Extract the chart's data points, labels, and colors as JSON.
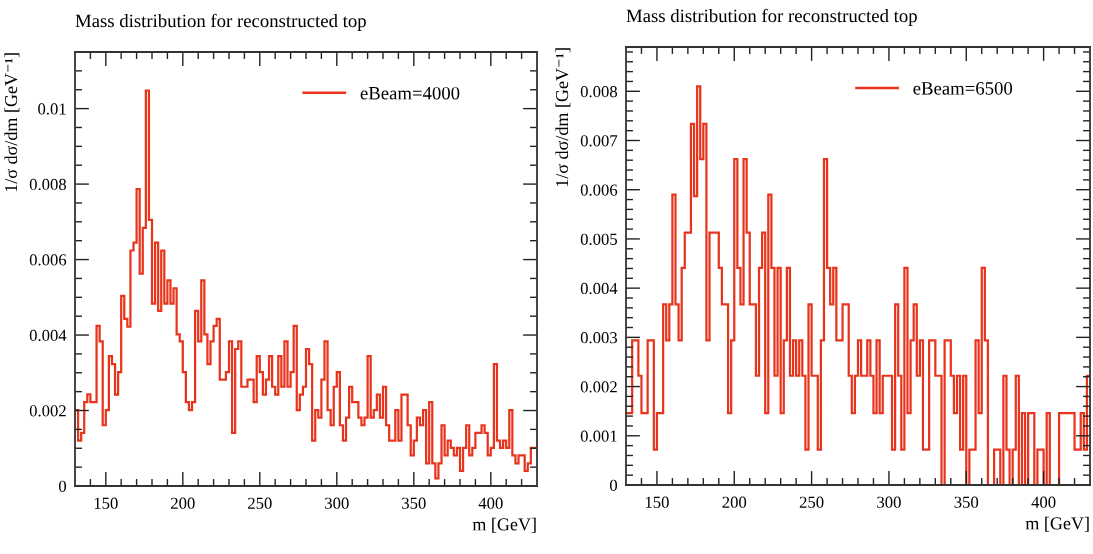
{
  "chart_data": [
    {
      "type": "histogram",
      "title": "Mass distribution for reconstructed top",
      "xlabel": "m [GeV]",
      "ylabel": "1/σ dσ/dm [GeV⁻¹]",
      "legend": "top right",
      "bins": [
        130,
        132,
        134,
        136,
        138,
        140,
        142,
        144,
        146,
        148,
        150,
        152,
        154,
        156,
        158,
        160,
        162,
        164,
        166,
        168,
        170,
        172,
        174,
        176,
        178,
        180,
        182,
        184,
        186,
        188,
        190,
        192,
        194,
        196,
        198,
        200,
        202,
        204,
        206,
        208,
        210,
        212,
        214,
        216,
        218,
        220,
        222,
        224,
        226,
        228,
        230,
        232,
        234,
        236,
        238,
        240,
        242,
        244,
        246,
        248,
        250,
        252,
        254,
        256,
        258,
        260,
        262,
        264,
        266,
        268,
        270,
        272,
        274,
        276,
        278,
        280,
        282,
        284,
        286,
        288,
        290,
        292,
        294,
        296,
        298,
        300,
        302,
        304,
        306,
        308,
        310,
        312,
        314,
        316,
        318,
        320,
        322,
        324,
        326,
        328,
        330,
        332,
        334,
        336,
        338,
        340,
        342,
        344,
        346,
        348,
        350,
        352,
        354,
        356,
        358,
        360,
        362,
        364,
        366,
        368,
        370,
        372,
        374,
        376,
        378,
        380,
        382,
        384,
        386,
        388,
        390,
        392,
        394,
        396,
        398,
        400,
        402,
        404,
        406,
        408,
        410,
        412,
        414,
        416,
        418,
        420,
        422,
        424,
        426,
        428,
        430
      ],
      "series": [
        {
          "name": "eBeam=4000",
          "color": "#e8341c",
          "values": [
            0.00201,
            0.0012,
            0.00141,
            0.00222,
            0.00243,
            0.00222,
            0.00222,
            0.00424,
            0.00383,
            0.00161,
            0.00201,
            0.00344,
            0.00323,
            0.00242,
            0.00302,
            0.00504,
            0.00443,
            0.00422,
            0.00624,
            0.00645,
            0.00787,
            0.00563,
            0.00684,
            0.01048,
            0.00705,
            0.00483,
            0.00645,
            0.00464,
            0.00624,
            0.00483,
            0.00545,
            0.00483,
            0.00524,
            0.00402,
            0.00383,
            0.00302,
            0.00222,
            0.00201,
            0.00222,
            0.00464,
            0.00383,
            0.00545,
            0.00402,
            0.00323,
            0.00383,
            0.00424,
            0.00443,
            0.00282,
            0.00282,
            0.00302,
            0.00383,
            0.00141,
            0.00363,
            0.00383,
            0.00263,
            0.00263,
            0.00282,
            0.00282,
            0.00222,
            0.00344,
            0.00302,
            0.00242,
            0.00282,
            0.00344,
            0.00263,
            0.00242,
            0.00344,
            0.00263,
            0.00383,
            0.00263,
            0.00302,
            0.00424,
            0.00201,
            0.00242,
            0.00263,
            0.00363,
            0.00323,
            0.0012,
            0.00201,
            0.00181,
            0.00282,
            0.00383,
            0.00201,
            0.00161,
            0.00263,
            0.00302,
            0.00161,
            0.0012,
            0.00181,
            0.00263,
            0.00222,
            0.00222,
            0.00181,
            0.00161,
            0.00181,
            0.00344,
            0.00181,
            0.00201,
            0.00242,
            0.00181,
            0.00263,
            0.00161,
            0.0012,
            0.0012,
            0.00201,
            0.0012,
            0.00242,
            0.00242,
            0.00161,
            0.00081,
            0.0012,
            0.00181,
            0.00161,
            0.00201,
            0.0006,
            0.00222,
            0.0006,
            0.0002,
            0.0006,
            0.00161,
            0.00081,
            0.0012,
            0.00101,
            0.00081,
            0.00101,
            0.0004,
            0.00101,
            0.00161,
            0.00081,
            0.00101,
            0.00141,
            0.00141,
            0.00161,
            0.00141,
            0.00081,
            0.00101,
            0.00323,
            0.0012,
            0.00101,
            0.0012,
            0.00101,
            0.00201,
            0.00081,
            0.0006,
            0.00081,
            0.00081,
            0.0004,
            0.0006,
            0.00101,
            0.00101
          ]
        }
      ],
      "xlim": [
        130,
        430
      ],
      "xticks": [
        {
          "value": 140,
          "label": null
        },
        150,
        {
          "value": 160,
          "label": null
        },
        {
          "value": 170,
          "label": null
        },
        {
          "value": 180,
          "label": null
        },
        {
          "value": 190,
          "label": null
        },
        200,
        {
          "value": 210,
          "label": null
        },
        {
          "value": 220,
          "label": null
        },
        {
          "value": 230,
          "label": null
        },
        {
          "value": 240,
          "label": null
        },
        250,
        {
          "value": 260,
          "label": null
        },
        {
          "value": 270,
          "label": null
        },
        {
          "value": 280,
          "label": null
        },
        {
          "value": 290,
          "label": null
        },
        300,
        {
          "value": 310,
          "label": null
        },
        {
          "value": 320,
          "label": null
        },
        {
          "value": 330,
          "label": null
        },
        {
          "value": 340,
          "label": null
        },
        350,
        {
          "value": 360,
          "label": null
        },
        {
          "value": 370,
          "label": null
        },
        {
          "value": 380,
          "label": null
        },
        {
          "value": 390,
          "label": null
        },
        400,
        {
          "value": 410,
          "label": null
        },
        {
          "value": 420,
          "label": null
        }
      ],
      "ylim": [
        0,
        0.0115
      ],
      "yticks": [
        0,
        {
          "value": 0.0005,
          "label": null
        },
        {
          "value": 0.001,
          "label": null
        },
        {
          "value": 0.0015,
          "label": null
        },
        0.002,
        {
          "value": 0.0025,
          "label": null
        },
        {
          "value": 0.003,
          "label": null
        },
        {
          "value": 0.0035,
          "label": null
        },
        0.004,
        {
          "value": 0.0045,
          "label": null
        },
        {
          "value": 0.005,
          "label": null
        },
        {
          "value": 0.0055,
          "label": null
        },
        0.006,
        {
          "value": 0.0065,
          "label": null
        },
        {
          "value": 0.007,
          "label": null
        },
        {
          "value": 0.0075,
          "label": null
        },
        0.008,
        {
          "value": 0.0085,
          "label": null
        },
        {
          "value": 0.009,
          "label": null
        },
        {
          "value": 0.0095,
          "label": null
        },
        0.01,
        {
          "value": 0.0105,
          "label": null
        },
        {
          "value": 0.011,
          "label": null
        }
      ]
    },
    {
      "type": "histogram",
      "title": "Mass distribution for reconstructed top",
      "xlabel": "m [GeV]",
      "ylabel": "1/σ dσ/dm [GeV⁻¹]",
      "legend": "top right",
      "bins": [
        130,
        132,
        134,
        136,
        138,
        140,
        142,
        144,
        146,
        148,
        150,
        152,
        154,
        156,
        158,
        160,
        162,
        164,
        166,
        168,
        170,
        172,
        174,
        176,
        178,
        180,
        182,
        184,
        186,
        188,
        190,
        192,
        194,
        196,
        198,
        200,
        202,
        204,
        206,
        208,
        210,
        212,
        214,
        216,
        218,
        220,
        222,
        224,
        226,
        228,
        230,
        232,
        234,
        236,
        238,
        240,
        242,
        244,
        246,
        248,
        250,
        252,
        254,
        256,
        258,
        260,
        262,
        264,
        266,
        268,
        270,
        272,
        274,
        276,
        278,
        280,
        282,
        284,
        286,
        288,
        290,
        292,
        294,
        296,
        298,
        300,
        302,
        304,
        306,
        308,
        310,
        312,
        314,
        316,
        318,
        320,
        322,
        324,
        326,
        328,
        330,
        332,
        334,
        336,
        338,
        340,
        342,
        344,
        346,
        348,
        350,
        352,
        354,
        356,
        358,
        360,
        362,
        364,
        366,
        368,
        370,
        372,
        374,
        376,
        378,
        380,
        382,
        384,
        386,
        388,
        390,
        392,
        394,
        396,
        398,
        400,
        402,
        404,
        406,
        408,
        410,
        412,
        414,
        416,
        418,
        420,
        422,
        424,
        426,
        428,
        430
      ],
      "series": [
        {
          "name": "eBeam=6500",
          "color": "#e8341c",
          "values": [
            0.00146,
            0.00146,
            0.00294,
            0.00294,
            0.00222,
            0.00146,
            0.00146,
            0.00294,
            0.00294,
            0.00072,
            0.00146,
            0.00146,
            0.00367,
            0.00294,
            0.00367,
            0.0059,
            0.00367,
            0.00294,
            0.00441,
            0.00513,
            0.00513,
            0.00734,
            0.00587,
            0.0081,
            0.00662,
            0.00734,
            0.00294,
            0.00513,
            0.00513,
            0.00513,
            0.00441,
            0.00367,
            0.00367,
            0.00146,
            0.00294,
            0.00662,
            0.00441,
            0.00367,
            0.00662,
            0.00513,
            0.00367,
            0.00367,
            0.00222,
            0.00441,
            0.00513,
            0.00146,
            0.0059,
            0.00441,
            0.00222,
            0.00441,
            0.00146,
            0.00294,
            0.00441,
            0.00222,
            0.00294,
            0.00222,
            0.00294,
            0.00222,
            0.00072,
            0.00367,
            0.00222,
            0.00222,
            0.00072,
            0.00294,
            0.00662,
            0.00441,
            0.00367,
            0.00441,
            0.00294,
            0.00294,
            0.00367,
            0.00367,
            0.00222,
            0.00146,
            0.00222,
            0.00294,
            0.00222,
            0.00222,
            0.00294,
            0.00222,
            0.00146,
            0.00294,
            0.00146,
            0.00222,
            0.00222,
            0.00222,
            0.00072,
            0.00367,
            0.00222,
            0.00072,
            0.00441,
            0.00146,
            0.00294,
            0.00367,
            0.00222,
            0.00294,
            0.00072,
            0.00072,
            0.00294,
            0.00294,
            0.00222,
            0.00222,
            0,
            0.00294,
            0.00294,
            0.00222,
            0.00146,
            0.00222,
            0.00072,
            0.00222,
            0,
            0.00072,
            0.00072,
            0.00294,
            0.00146,
            0.00441,
            0.00294,
            0,
            0,
            0.00072,
            0.00072,
            0,
            0.00222,
            0.00072,
            0,
            0.00072,
            0.00222,
            0,
            0.00146,
            0,
            0.00146,
            0.00146,
            0,
            0.00072,
            0.00072,
            0,
            0.00146,
            0,
            0,
            0,
            0.00146,
            0.00146,
            0.00146,
            0.00146,
            0.00146,
            0.00072,
            0.00072,
            0.00146,
            0.00072,
            0.00222
          ]
        }
      ],
      "xlim": [
        130,
        430
      ],
      "xticks": [
        {
          "value": 140,
          "label": null
        },
        150,
        {
          "value": 160,
          "label": null
        },
        {
          "value": 170,
          "label": null
        },
        {
          "value": 180,
          "label": null
        },
        {
          "value": 190,
          "label": null
        },
        200,
        {
          "value": 210,
          "label": null
        },
        {
          "value": 220,
          "label": null
        },
        {
          "value": 230,
          "label": null
        },
        {
          "value": 240,
          "label": null
        },
        250,
        {
          "value": 260,
          "label": null
        },
        {
          "value": 270,
          "label": null
        },
        {
          "value": 280,
          "label": null
        },
        {
          "value": 290,
          "label": null
        },
        300,
        {
          "value": 310,
          "label": null
        },
        {
          "value": 320,
          "label": null
        },
        {
          "value": 330,
          "label": null
        },
        {
          "value": 340,
          "label": null
        },
        350,
        {
          "value": 360,
          "label": null
        },
        {
          "value": 370,
          "label": null
        },
        {
          "value": 380,
          "label": null
        },
        {
          "value": 390,
          "label": null
        },
        400,
        {
          "value": 410,
          "label": null
        },
        {
          "value": 420,
          "label": null
        }
      ],
      "ylim": [
        0,
        0.0089
      ],
      "yticks": [
        0,
        {
          "value": 0.0002,
          "label": null
        },
        {
          "value": 0.0004,
          "label": null
        },
        {
          "value": 0.0006,
          "label": null
        },
        {
          "value": 0.0008,
          "label": null
        },
        0.001,
        {
          "value": 0.0012,
          "label": null
        },
        {
          "value": 0.0014,
          "label": null
        },
        {
          "value": 0.0016,
          "label": null
        },
        {
          "value": 0.0018,
          "label": null
        },
        0.002,
        {
          "value": 0.0022,
          "label": null
        },
        {
          "value": 0.0024,
          "label": null
        },
        {
          "value": 0.0026,
          "label": null
        },
        {
          "value": 0.0028,
          "label": null
        },
        0.003,
        {
          "value": 0.0032,
          "label": null
        },
        {
          "value": 0.0034,
          "label": null
        },
        {
          "value": 0.0036,
          "label": null
        },
        {
          "value": 0.0038,
          "label": null
        },
        0.004,
        {
          "value": 0.0042,
          "label": null
        },
        {
          "value": 0.0044,
          "label": null
        },
        {
          "value": 0.0046,
          "label": null
        },
        {
          "value": 0.0048,
          "label": null
        },
        0.005,
        {
          "value": 0.0052,
          "label": null
        },
        {
          "value": 0.0054,
          "label": null
        },
        {
          "value": 0.0056,
          "label": null
        },
        {
          "value": 0.0058,
          "label": null
        },
        0.006,
        {
          "value": 0.0062,
          "label": null
        },
        {
          "value": 0.0064,
          "label": null
        },
        {
          "value": 0.0066,
          "label": null
        },
        {
          "value": 0.0068,
          "label": null
        },
        0.007,
        {
          "value": 0.0072,
          "label": null
        },
        {
          "value": 0.0074,
          "label": null
        },
        {
          "value": 0.0076,
          "label": null
        },
        {
          "value": 0.0078,
          "label": null
        },
        0.008,
        {
          "value": 0.0082,
          "label": null
        },
        {
          "value": 0.0084,
          "label": null
        },
        {
          "value": 0.0086,
          "label": null
        },
        {
          "value": 0.0088,
          "label": null
        }
      ]
    }
  ]
}
